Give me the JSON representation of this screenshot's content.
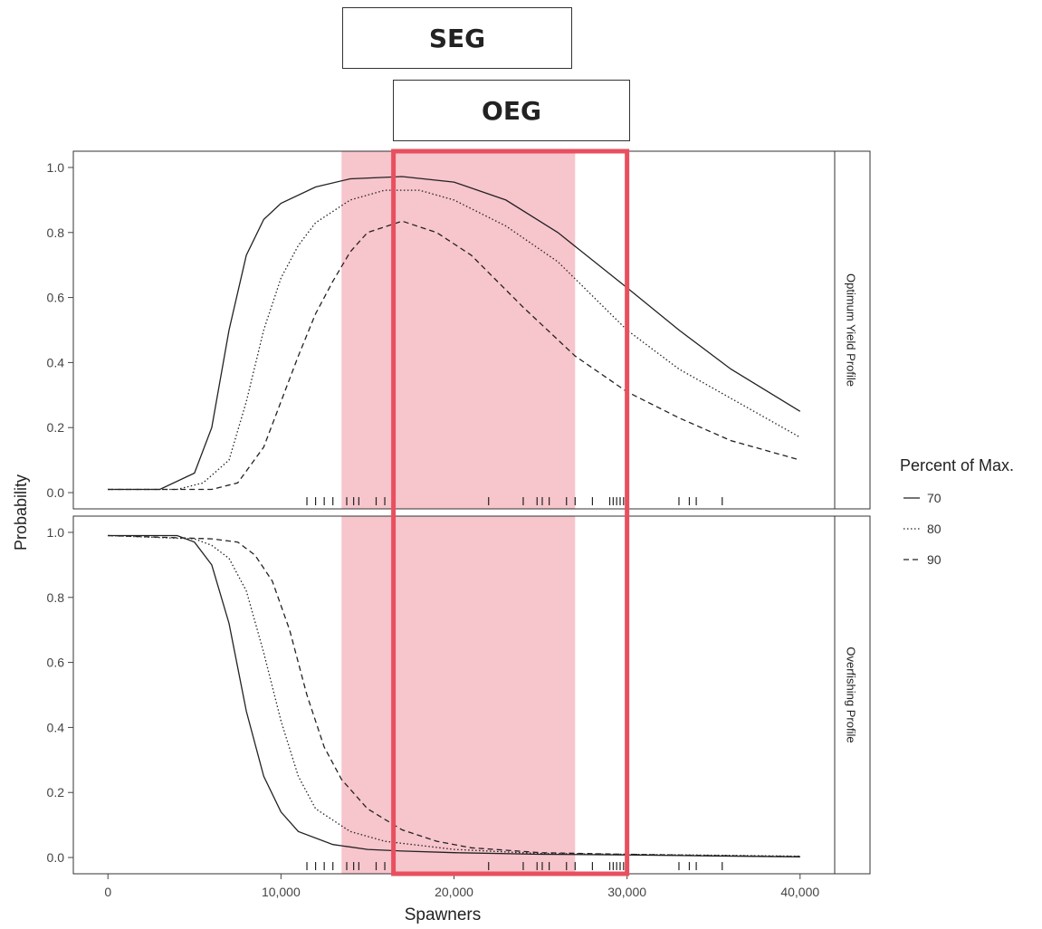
{
  "chart_data": {
    "type": "line",
    "xlabel": "Spawners",
    "ylabel": "Probability",
    "xlim": [
      -2000,
      42000
    ],
    "ylim": [
      -0.05,
      1.05
    ],
    "x_ticks": [
      0,
      10000,
      20000,
      30000,
      40000
    ],
    "x_tick_labels": [
      "0",
      "10,000",
      "20,000",
      "30,000",
      "40,000"
    ],
    "y_ticks": [
      0,
      0.2,
      0.4,
      0.6,
      0.8,
      1.0
    ],
    "y_tick_labels": [
      "0.0",
      "0.2",
      "0.4",
      "0.6",
      "0.8",
      "1.0"
    ],
    "grid": false,
    "legend": {
      "title": "Percent of Max.",
      "placement": "right",
      "entries": [
        {
          "label": "70",
          "style": "solid"
        },
        {
          "label": "80",
          "style": "dotted"
        },
        {
          "label": "90",
          "style": "dashed"
        }
      ]
    },
    "goals": [
      {
        "label": "SEG",
        "range": [
          13500,
          27000
        ],
        "color": "#f7c5cc"
      },
      {
        "label": "OEG",
        "range": [
          16500,
          30000
        ],
        "color": "#e8505f"
      }
    ],
    "panels": [
      {
        "strip_label": "Optimum Yield Profile",
        "series": [
          {
            "name": "70",
            "style": "solid",
            "points": [
              [
                0,
                0.01
              ],
              [
                3000,
                0.01
              ],
              [
                5000,
                0.06
              ],
              [
                6000,
                0.2
              ],
              [
                7000,
                0.5
              ],
              [
                8000,
                0.73
              ],
              [
                9000,
                0.84
              ],
              [
                10000,
                0.89
              ],
              [
                12000,
                0.94
              ],
              [
                14000,
                0.965
              ],
              [
                17000,
                0.972
              ],
              [
                20000,
                0.955
              ],
              [
                23000,
                0.9
              ],
              [
                26000,
                0.8
              ],
              [
                30000,
                0.63
              ],
              [
                33000,
                0.5
              ],
              [
                36000,
                0.38
              ],
              [
                40000,
                0.25
              ]
            ]
          },
          {
            "name": "80",
            "style": "dotted",
            "points": [
              [
                0,
                0.01
              ],
              [
                4000,
                0.01
              ],
              [
                5500,
                0.03
              ],
              [
                7000,
                0.1
              ],
              [
                8000,
                0.28
              ],
              [
                9000,
                0.5
              ],
              [
                10000,
                0.66
              ],
              [
                11000,
                0.76
              ],
              [
                12000,
                0.83
              ],
              [
                14000,
                0.9
              ],
              [
                16000,
                0.93
              ],
              [
                18000,
                0.93
              ],
              [
                20000,
                0.9
              ],
              [
                23000,
                0.82
              ],
              [
                26000,
                0.71
              ],
              [
                30000,
                0.5
              ],
              [
                33000,
                0.38
              ],
              [
                36000,
                0.29
              ],
              [
                40000,
                0.17
              ]
            ]
          },
          {
            "name": "90",
            "style": "dashed",
            "points": [
              [
                0,
                0.01
              ],
              [
                6000,
                0.01
              ],
              [
                7500,
                0.03
              ],
              [
                9000,
                0.14
              ],
              [
                10000,
                0.28
              ],
              [
                11000,
                0.42
              ],
              [
                12000,
                0.55
              ],
              [
                13000,
                0.65
              ],
              [
                14000,
                0.74
              ],
              [
                15000,
                0.8
              ],
              [
                17000,
                0.835
              ],
              [
                19000,
                0.8
              ],
              [
                21000,
                0.73
              ],
              [
                24000,
                0.57
              ],
              [
                27000,
                0.42
              ],
              [
                30000,
                0.31
              ],
              [
                33000,
                0.23
              ],
              [
                36000,
                0.16
              ],
              [
                40000,
                0.1
              ]
            ]
          }
        ]
      },
      {
        "strip_label": "Overfishing Profile",
        "series": [
          {
            "name": "70",
            "style": "solid",
            "points": [
              [
                0,
                0.99
              ],
              [
                4000,
                0.99
              ],
              [
                5000,
                0.97
              ],
              [
                6000,
                0.9
              ],
              [
                7000,
                0.72
              ],
              [
                8000,
                0.45
              ],
              [
                9000,
                0.25
              ],
              [
                10000,
                0.14
              ],
              [
                11000,
                0.08
              ],
              [
                13000,
                0.04
              ],
              [
                15000,
                0.025
              ],
              [
                17000,
                0.02
              ],
              [
                20000,
                0.015
              ],
              [
                25000,
                0.01
              ],
              [
                30000,
                0.008
              ],
              [
                35000,
                0.005
              ],
              [
                40000,
                0.002
              ]
            ]
          },
          {
            "name": "80",
            "style": "dotted",
            "points": [
              [
                0,
                0.99
              ],
              [
                5000,
                0.98
              ],
              [
                6000,
                0.96
              ],
              [
                7000,
                0.92
              ],
              [
                8000,
                0.82
              ],
              [
                9000,
                0.63
              ],
              [
                10000,
                0.42
              ],
              [
                11000,
                0.25
              ],
              [
                12000,
                0.15
              ],
              [
                14000,
                0.08
              ],
              [
                16000,
                0.05
              ],
              [
                20000,
                0.025
              ],
              [
                25000,
                0.012
              ],
              [
                30000,
                0.01
              ],
              [
                35000,
                0.007
              ],
              [
                40000,
                0.004
              ]
            ]
          },
          {
            "name": "90",
            "style": "dashed",
            "points": [
              [
                0,
                0.99
              ],
              [
                6000,
                0.98
              ],
              [
                7500,
                0.97
              ],
              [
                8500,
                0.93
              ],
              [
                9500,
                0.85
              ],
              [
                10500,
                0.7
              ],
              [
                11500,
                0.5
              ],
              [
                12500,
                0.34
              ],
              [
                13500,
                0.24
              ],
              [
                15000,
                0.15
              ],
              [
                17000,
                0.085
              ],
              [
                19000,
                0.05
              ],
              [
                21000,
                0.03
              ],
              [
                25000,
                0.015
              ],
              [
                30000,
                0.01
              ],
              [
                35000,
                0.006
              ],
              [
                40000,
                0.003
              ]
            ]
          }
        ]
      }
    ],
    "rug_x": [
      11500,
      12000,
      12500,
      13000,
      13800,
      14200,
      14500,
      15500,
      16000,
      22000,
      24000,
      24800,
      25100,
      25500,
      26500,
      27000,
      28000,
      29000,
      29200,
      29400,
      29600,
      29800,
      30000,
      33000,
      33600,
      34000,
      35500
    ]
  }
}
